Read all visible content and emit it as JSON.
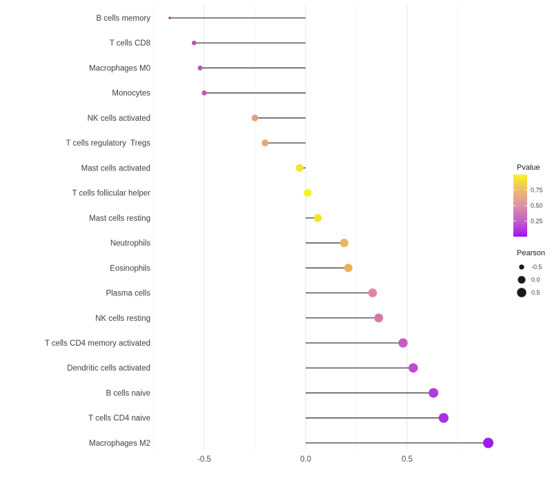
{
  "chart_data": {
    "type": "scatter",
    "variant": "lollipop",
    "title": "",
    "xlabel": "",
    "ylabel": "",
    "x_ticks": [
      -0.5,
      0.0,
      0.5
    ],
    "x_tick_labels": [
      "-0.5",
      "0.0",
      "0.5"
    ],
    "x_minor_ticks": [
      -0.75,
      -0.25,
      0.25,
      0.75
    ],
    "xlim": [
      -0.77,
      1.0
    ],
    "grid": "vertical-only",
    "legend_position": "right-center",
    "points": [
      {
        "label": "B cells memory",
        "pearson": -0.67,
        "color": "#a438c4"
      },
      {
        "label": "T cells CD8",
        "pearson": -0.55,
        "color": "#bd53c3"
      },
      {
        "label": "Macrophages M0",
        "pearson": -0.52,
        "color": "#bd53c3"
      },
      {
        "label": "Monocytes",
        "pearson": -0.5,
        "color": "#c058c1"
      },
      {
        "label": "NK cells activated",
        "pearson": -0.25,
        "color": "#e59d80"
      },
      {
        "label": "T cells regulatory  Tregs",
        "pearson": -0.2,
        "color": "#e7aa6c"
      },
      {
        "label": "Mast cells activated",
        "pearson": -0.03,
        "color": "#f2e52b"
      },
      {
        "label": "T cells follicular helper",
        "pearson": 0.01,
        "color": "#f8f313"
      },
      {
        "label": "Mast cells resting",
        "pearson": 0.06,
        "color": "#f2e52b"
      },
      {
        "label": "Neutrophils",
        "pearson": 0.19,
        "color": "#ecb360"
      },
      {
        "label": "Eosinophils",
        "pearson": 0.21,
        "color": "#ecb05c"
      },
      {
        "label": "Plasma cells",
        "pearson": 0.33,
        "color": "#df86a8"
      },
      {
        "label": "NK cells resting",
        "pearson": 0.36,
        "color": "#d677a9"
      },
      {
        "label": "T cells CD4 memory activated",
        "pearson": 0.48,
        "color": "#c45cc6"
      },
      {
        "label": "Dendritic cells activated",
        "pearson": 0.53,
        "color": "#bd4bd0"
      },
      {
        "label": "B cells naive",
        "pearson": 0.63,
        "color": "#b23bda"
      },
      {
        "label": "T cells CD4 naive",
        "pearson": 0.68,
        "color": "#a92fe2"
      },
      {
        "label": "Macrophages M2",
        "pearson": 0.9,
        "color": "#9c1ce9"
      }
    ],
    "legend": {
      "pvalue": {
        "title": "Pvalue",
        "tick_labels": [
          "0.75",
          "0.50",
          "0.25"
        ],
        "tick_values": [
          0.75,
          0.5,
          0.25
        ],
        "range": [
          0,
          1
        ],
        "gradient_stops_low_to_high": [
          "#a213f2",
          "#c45fc8",
          "#de92a6",
          "#eebb72",
          "#f9f420"
        ]
      },
      "pearson": {
        "title": "Pearson",
        "items": [
          {
            "label": "-0.5",
            "value": -0.5
          },
          {
            "label": "0.0",
            "value": 0.0
          },
          {
            "label": "0.5",
            "value": 0.5
          }
        ],
        "dot_color": "#1a1a1a"
      }
    },
    "colors": {
      "stem": "#3c3c3c",
      "grid_major": "#e6e6e6",
      "grid_minor": "#f3f3f3",
      "background": "#ffffff"
    }
  }
}
